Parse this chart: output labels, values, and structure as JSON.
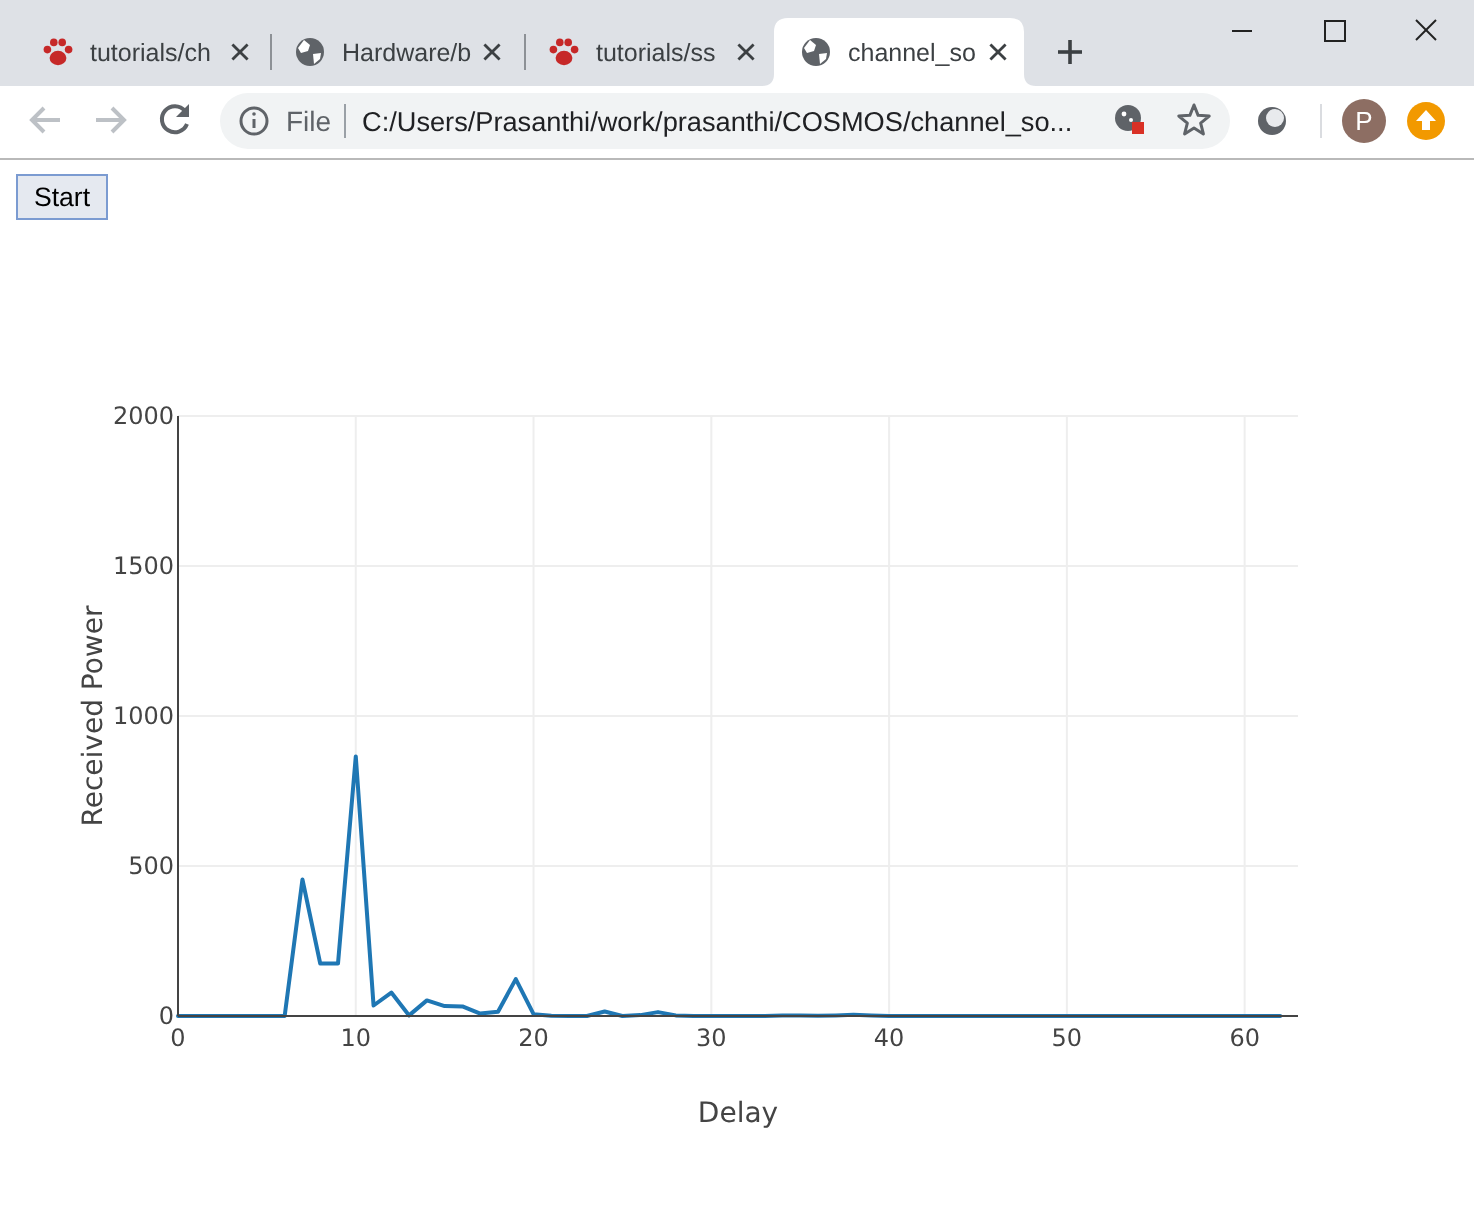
{
  "chart_data": {
    "type": "line",
    "xlabel": "Delay",
    "ylabel": "Received Power",
    "x": [
      0,
      1,
      2,
      3,
      4,
      5,
      6,
      7,
      8,
      9,
      10,
      11,
      12,
      13,
      14,
      15,
      16,
      17,
      18,
      19,
      20,
      21,
      22,
      23,
      24,
      25,
      26,
      27,
      28,
      29,
      30,
      31,
      32,
      33,
      34,
      35,
      36,
      37,
      38,
      39,
      40,
      41,
      42,
      43,
      44,
      45,
      46,
      47,
      48,
      49,
      50,
      51,
      52,
      53,
      54,
      55,
      56,
      57,
      58,
      59,
      60,
      61,
      62
    ],
    "series": [
      {
        "color": "#1f77b4",
        "values": [
          0,
          0,
          0,
          0,
          0,
          0,
          0,
          455,
          175,
          175,
          865,
          35,
          78,
          2,
          52,
          33,
          32,
          8,
          14,
          123,
          6,
          1,
          0,
          0,
          15,
          0,
          3,
          13,
          2,
          0,
          0,
          0,
          0,
          0,
          2,
          2,
          1,
          2,
          4,
          2,
          0,
          0,
          0,
          0,
          0,
          0,
          0,
          0,
          0,
          0,
          0,
          0,
          0,
          0,
          0,
          0,
          0,
          0,
          0,
          0,
          0,
          0,
          0
        ]
      }
    ],
    "xlim": [
      0,
      63
    ],
    "ylim": [
      0,
      2000
    ],
    "xticks": [
      0,
      10,
      20,
      30,
      40,
      50,
      60
    ],
    "yticks": [
      0,
      500,
      1000,
      1500,
      2000
    ],
    "grid": true,
    "annotations": [
      "tutorials/ch",
      "Hardware/b",
      "tutorials/ss",
      "channel_so",
      "File",
      "C:/Users/Prasanthi/work/prasanthi/COSMOS/channel_so...",
      "P",
      "Start"
    ]
  }
}
